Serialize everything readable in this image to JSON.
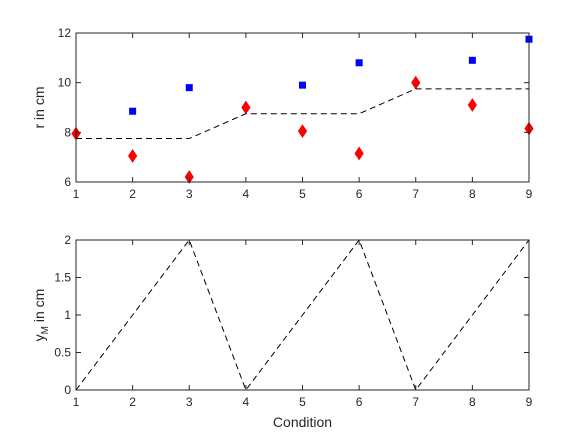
{
  "chart_data": [
    {
      "type": "scatter",
      "ylabel": "r in cm",
      "xlabel": "",
      "xlim": [
        1,
        9
      ],
      "ylim": [
        6,
        12
      ],
      "xticks": [
        1,
        2,
        3,
        4,
        5,
        6,
        7,
        8,
        9
      ],
      "yticks": [
        6,
        8,
        10,
        12
      ],
      "box": true,
      "series": [
        {
          "marker": "square",
          "color": "#0000ff",
          "x": [
            2,
            3,
            5,
            6,
            8,
            9
          ],
          "y": [
            8.85,
            9.8,
            9.9,
            10.8,
            10.9,
            11.75
          ]
        },
        {
          "marker": "diamond",
          "color": "#ff0000",
          "x": [
            1,
            2,
            3,
            4,
            5,
            6,
            7,
            8,
            9
          ],
          "y": [
            7.95,
            7.05,
            6.2,
            9.0,
            8.05,
            7.15,
            10.0,
            9.1,
            8.15
          ]
        },
        {
          "marker": "none",
          "line": "dashed",
          "color": "#000000",
          "x": [
            1,
            2,
            3,
            4,
            5,
            6,
            7,
            8,
            9
          ],
          "y": [
            7.75,
            7.75,
            7.75,
            8.75,
            8.75,
            8.75,
            9.75,
            9.75,
            9.75
          ]
        }
      ]
    },
    {
      "type": "line",
      "ylabel": "y_M in cm",
      "ylabel_main": "y",
      "ylabel_sub": "M",
      "ylabel_rest": " in cm",
      "xlabel": "Condition",
      "xlim": [
        1,
        9
      ],
      "ylim": [
        0,
        2
      ],
      "xticks": [
        1,
        2,
        3,
        4,
        5,
        6,
        7,
        8,
        9
      ],
      "yticks": [
        0,
        0.5,
        1,
        1.5,
        2
      ],
      "ytick_labels": [
        "0",
        "0.5",
        "1",
        "1.5",
        "2"
      ],
      "box": true,
      "series": [
        {
          "line": "dashed",
          "color": "#000000",
          "x": [
            1,
            2,
            3,
            4,
            5,
            6,
            7,
            8,
            9
          ],
          "y": [
            0,
            1,
            2,
            0,
            1,
            2,
            0,
            1,
            2
          ]
        }
      ]
    }
  ]
}
